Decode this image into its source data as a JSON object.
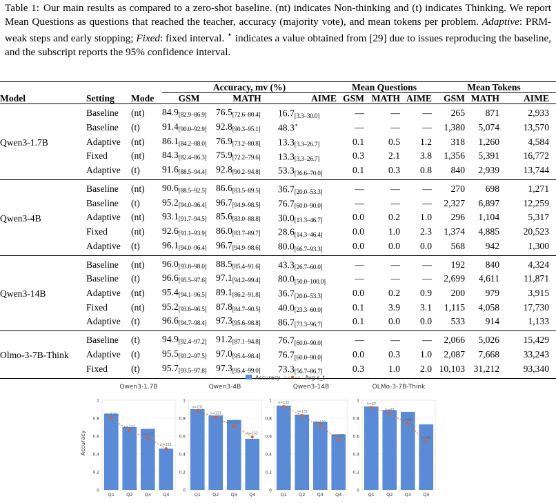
{
  "caption": {
    "label": "Table 1:",
    "text1": "Our main results as compared to a zero-shot baseline. (nt) indicates Non-thinking and (t) indicates Thinking. We report Mean Questions as questions that reached the teacher, accuracy (majority vote), and mean tokens per problem. ",
    "adaptive_label": "Adaptive",
    "text2": ": PRM-weak steps and early stopping; ",
    "fixed_label": "Fixed",
    "text3": ": fixed interval. ",
    "star": "⋆",
    "text4": " indicates a value obtained from [29] due to issues reproducing the baseline, and the subscript reports the 95% confidence interval."
  },
  "table": {
    "group_headers": {
      "accuracy": "Accuracy, mv (%)",
      "questions": "Mean Questions",
      "tokens": "Mean Tokens"
    },
    "columns": [
      "Model",
      "Setting",
      "Mode",
      "GSM",
      "MATH",
      "AIME",
      "GSM",
      "MATH",
      "AIME",
      "GSM",
      "MATH",
      "AIME"
    ],
    "groups": [
      {
        "model": "Qwen3-1.7B",
        "rows": [
          {
            "setting": "Baseline",
            "mode": "(nt)",
            "gsm": "84.9",
            "gsm_ci": "[82.9–86.9]",
            "math": "76.5",
            "math_ci": "[72.6–80.4]",
            "aime": "16.7",
            "aime_ci": "[3.3–30.0]",
            "aime_star": "",
            "q_gsm": "—",
            "q_math": "—",
            "q_aime": "—",
            "t_gsm": "265",
            "t_math": "871",
            "t_aime": "2,933"
          },
          {
            "setting": "Baseline",
            "mode": "(t)",
            "gsm": "91.4",
            "gsm_ci": "[90.0–92.9]",
            "math": "92.8",
            "math_ci": "[90.3–95.1]",
            "aime": "48.3",
            "aime_ci": "",
            "aime_star": "⋆",
            "q_gsm": "—",
            "q_math": "—",
            "q_aime": "—",
            "t_gsm": "1,380",
            "t_math": "5,074",
            "t_aime": "13,570"
          },
          {
            "setting": "Adaptive",
            "mode": "(nt)",
            "gsm": "86.1",
            "gsm_ci": "[84.2–88.0]",
            "math": "76.9",
            "math_ci": "[73.2–80.8]",
            "aime": "13.3",
            "aime_ci": "[3.3–26.7]",
            "aime_star": "",
            "q_gsm": "0.1",
            "q_math": "0.5",
            "q_aime": "1.2",
            "t_gsm": "318",
            "t_math": "1,260",
            "t_aime": "4,584"
          },
          {
            "setting": "Fixed",
            "mode": "(nt)",
            "gsm": "84.3",
            "gsm_ci": "[82.4–86.3]",
            "math": "75.9",
            "math_ci": "[72.2–79.6]",
            "aime": "13.3",
            "aime_ci": "[3.3–26.7]",
            "aime_star": "",
            "q_gsm": "0.3",
            "q_math": "2.1",
            "q_aime": "3.8",
            "t_gsm": "1,356",
            "t_math": "5,391",
            "t_aime": "16,772"
          },
          {
            "setting": "Adaptive",
            "mode": "(t)",
            "gsm": "91.6",
            "gsm_ci": "[88.5–94.4]",
            "math": "92.8",
            "math_ci": "[90.2–94.8]",
            "aime": "53.3",
            "aime_ci": "[36.6–70.0]",
            "aime_star": "",
            "q_gsm": "0.1",
            "q_math": "0.3",
            "q_aime": "0.8",
            "t_gsm": "840",
            "t_math": "2,939",
            "t_aime": "13,744"
          }
        ]
      },
      {
        "model": "Qwen3-4B",
        "rows": [
          {
            "setting": "Baseline",
            "mode": "(nt)",
            "gsm": "90.6",
            "gsm_ci": "[88.5–92.5]",
            "math": "86.6",
            "math_ci": "[83.5–89.5]",
            "aime": "36.7",
            "aime_ci": "[20.0–53.3]",
            "aime_star": "",
            "q_gsm": "—",
            "q_math": "—",
            "q_aime": "—",
            "t_gsm": "270",
            "t_math": "698",
            "t_aime": "1,271"
          },
          {
            "setting": "Baseline",
            "mode": "(t)",
            "gsm": "95.2",
            "gsm_ci": "[94.0–96.4]",
            "math": "96.7",
            "math_ci": "[94.9–98.5]",
            "aime": "76.7",
            "aime_ci": "[60.0–90.0]",
            "aime_star": "",
            "q_gsm": "—",
            "q_math": "—",
            "q_aime": "—",
            "t_gsm": "2,327",
            "t_math": "6,897",
            "t_aime": "12,259"
          },
          {
            "setting": "Adaptive",
            "mode": "(nt)",
            "gsm": "93.1",
            "gsm_ci": "[91.7–94.5]",
            "math": "85.6",
            "math_ci": "[83.0–88.8]",
            "aime": "30.0",
            "aime_ci": "[13.3–46.7]",
            "aime_star": "",
            "q_gsm": "0.0",
            "q_math": "0.2",
            "q_aime": "1.0",
            "t_gsm": "296",
            "t_math": "1,104",
            "t_aime": "5,317"
          },
          {
            "setting": "Fixed",
            "mode": "(nt)",
            "gsm": "92.6",
            "gsm_ci": "[91.1–93.9]",
            "math": "86.0",
            "math_ci": "[83.7–89.7]",
            "aime": "28.6",
            "aime_ci": "[14.3–46.4]",
            "aime_star": "",
            "q_gsm": "0.0",
            "q_math": "1.0",
            "q_aime": "2.3",
            "t_gsm": "1,374",
            "t_math": "4,885",
            "t_aime": "20,523"
          },
          {
            "setting": "Adaptive",
            "mode": "(t)",
            "gsm": "96.1",
            "gsm_ci": "[94.0–96.4]",
            "math": "96.7",
            "math_ci": "[94.9–98.6]",
            "aime": "80.0",
            "aime_ci": "[66.7–93.3]",
            "aime_star": "",
            "q_gsm": "0.0",
            "q_math": "0.0",
            "q_aime": "0.0",
            "t_gsm": "568",
            "t_math": "942",
            "t_aime": "1,300"
          }
        ]
      },
      {
        "model": "Qwen3-14B",
        "rows": [
          {
            "setting": "Baseline",
            "mode": "(nt)",
            "gsm": "96.0",
            "gsm_ci": "[93.8–98.0]",
            "math": "88.5",
            "math_ci": "[85.4–91.6]",
            "aime": "43.3",
            "aime_ci": "[26.7–60.0]",
            "aime_star": "",
            "q_gsm": "—",
            "q_math": "—",
            "q_aime": "—",
            "t_gsm": "192",
            "t_math": "840",
            "t_aime": "4,324"
          },
          {
            "setting": "Baseline",
            "mode": "(t)",
            "gsm": "96.6",
            "gsm_ci": "[95.5–97.6]",
            "math": "97.1",
            "math_ci": "[94.2–99.4]",
            "aime": "80.0",
            "aime_ci": "[50.0–100.0]",
            "aime_star": "",
            "q_gsm": "—",
            "q_math": "—",
            "q_aime": "—",
            "t_gsm": "2,699",
            "t_math": "4,611",
            "t_aime": "11,871"
          },
          {
            "setting": "Adaptive",
            "mode": "(nt)",
            "gsm": "95.4",
            "gsm_ci": "[94.1–96.5]",
            "math": "89.1",
            "math_ci": "[86.2–91.8]",
            "aime": "36.7",
            "aime_ci": "[20.0–53.3]",
            "aime_star": "",
            "q_gsm": "0.0",
            "q_math": "0.2",
            "q_aime": "0.9",
            "t_gsm": "200",
            "t_math": "979",
            "t_aime": "3,915"
          },
          {
            "setting": "Fixed",
            "mode": "(nt)",
            "gsm": "95.2",
            "gsm_ci": "[93.6–96.5]",
            "math": "87.8",
            "math_ci": "[84.7–90.5]",
            "aime": "40.0",
            "aime_ci": "[23.3–60.0]",
            "aime_star": "",
            "q_gsm": "0.1",
            "q_math": "3.9",
            "q_aime": "3.1",
            "t_gsm": "1,115",
            "t_math": "4,058",
            "t_aime": "17,730"
          },
          {
            "setting": "Adaptive",
            "mode": "(t)",
            "gsm": "96.6",
            "gsm_ci": "[94.7–98.4]",
            "math": "97.3",
            "math_ci": "[95.6–98.8]",
            "aime": "86.7",
            "aime_ci": "[73.3–96.7]",
            "aime_star": "",
            "q_gsm": "0.1",
            "q_math": "0.0",
            "q_aime": "0.0",
            "t_gsm": "533",
            "t_math": "914",
            "t_aime": "1,133"
          }
        ]
      },
      {
        "model": "Olmo-3-7B-Think",
        "rows": [
          {
            "setting": "Baseline",
            "mode": "(t)",
            "gsm": "94.9",
            "gsm_ci": "[92.4–97.2]",
            "math": "91.2",
            "math_ci": "[87.1–94.8]",
            "aime": "76.7",
            "aime_ci": "[60.0–90.0]",
            "aime_star": "",
            "q_gsm": "—",
            "q_math": "—",
            "q_aime": "—",
            "t_gsm": "2,066",
            "t_math": "5,026",
            "t_aime": "15,429"
          },
          {
            "setting": "Adaptive",
            "mode": "(t)",
            "gsm": "95.5",
            "gsm_ci": "[93.2–97.5]",
            "math": "97.0",
            "math_ci": "[95.4–98.4]",
            "aime": "76.7",
            "aime_ci": "[60.0–90.0]",
            "aime_star": "",
            "q_gsm": "0.0",
            "q_math": "0.3",
            "q_aime": "1.0",
            "t_gsm": "2,087",
            "t_math": "7,668",
            "t_aime": "33,243"
          },
          {
            "setting": "Fixed",
            "mode": "(t)",
            "gsm": "95.7",
            "gsm_ci": "[93.5–97.8]",
            "math": "97.3",
            "math_ci": "[95.4–99.0]",
            "aime": "73.3",
            "aime_ci": "[56.7–86.7]",
            "aime_star": "",
            "q_gsm": "0.3",
            "q_math": "1.0",
            "q_aime": "2.0",
            "t_gsm": "10,103",
            "t_math": "31,212",
            "t_aime": "93,340"
          }
        ]
      }
    ]
  },
  "chart_data": {
    "type": "bar",
    "legend": {
      "bar_label": "Accuracy",
      "line_label": "Avg s_t",
      "placement": "top-center"
    },
    "ylabel": "Accuracy",
    "ylim": [
      0,
      1
    ],
    "yticks": [
      "0",
      "0.2",
      "0.4",
      "0.6",
      "0.8",
      "1"
    ],
    "bar_color": "#5b8bd6",
    "line_color": "#d9622b",
    "panels": [
      {
        "title": "Qwen3-1.7B",
        "categories": [
          "Q1",
          "Q2",
          "Q3",
          "Q4"
        ],
        "accuracy": [
          0.85,
          0.7,
          0.68,
          0.46
        ],
        "avg_s_t": [
          0.8,
          0.66,
          0.58,
          0.46
        ],
        "n_labels": [
          "n=132",
          "n=132",
          "n=132",
          "n=132"
        ]
      },
      {
        "title": "Qwen3-4B",
        "categories": [
          "Q1",
          "Q2",
          "Q3",
          "Q4"
        ],
        "accuracy": [
          0.9,
          0.83,
          0.78,
          0.57
        ],
        "avg_s_t": [
          0.88,
          0.81,
          0.71,
          0.59
        ],
        "n_labels": [
          "n=131",
          "n=131",
          "n=132",
          "n=132"
        ]
      },
      {
        "title": "Qwen3-14B",
        "categories": [
          "Q1",
          "Q2",
          "Q3",
          "Q4"
        ],
        "accuracy": [
          0.94,
          0.84,
          0.76,
          0.62
        ],
        "avg_s_t": [
          0.93,
          0.83,
          0.71,
          0.56
        ],
        "n_labels": [
          "n=132",
          "n=131",
          "n=132",
          "n=132"
        ]
      },
      {
        "title": "OLMo-3-7B-Think",
        "categories": [
          "Q1",
          "Q2",
          "Q3",
          "Q4"
        ],
        "accuracy": [
          0.93,
          0.89,
          0.87,
          0.73
        ],
        "avg_s_t": [
          0.92,
          0.85,
          0.74,
          0.54
        ],
        "n_labels": [
          "n=80",
          "n=80",
          "n=80",
          "n=80"
        ]
      }
    ]
  }
}
